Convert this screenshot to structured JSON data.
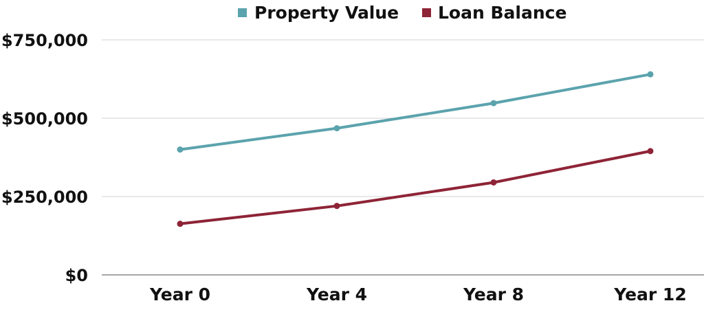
{
  "chart_data": {
    "type": "line",
    "categories": [
      "Year 0",
      "Year 4",
      "Year 8",
      "Year 12"
    ],
    "series": [
      {
        "name": "Property Value",
        "color": "#5ba3ad",
        "values": [
          400000,
          468000,
          548000,
          640000
        ]
      },
      {
        "name": "Loan Balance",
        "color": "#8e2436",
        "values": [
          163000,
          220000,
          295000,
          395000
        ]
      }
    ],
    "y_ticks": [
      0,
      250000,
      500000,
      750000
    ],
    "y_tick_labels": [
      "$0",
      "$250,000",
      "$500,000",
      "$750,000"
    ],
    "ylim": [
      0,
      750000
    ],
    "legend_position": "top-center",
    "grid": true,
    "grid_color": "#d0d0d0",
    "axis_color": "#888888"
  }
}
